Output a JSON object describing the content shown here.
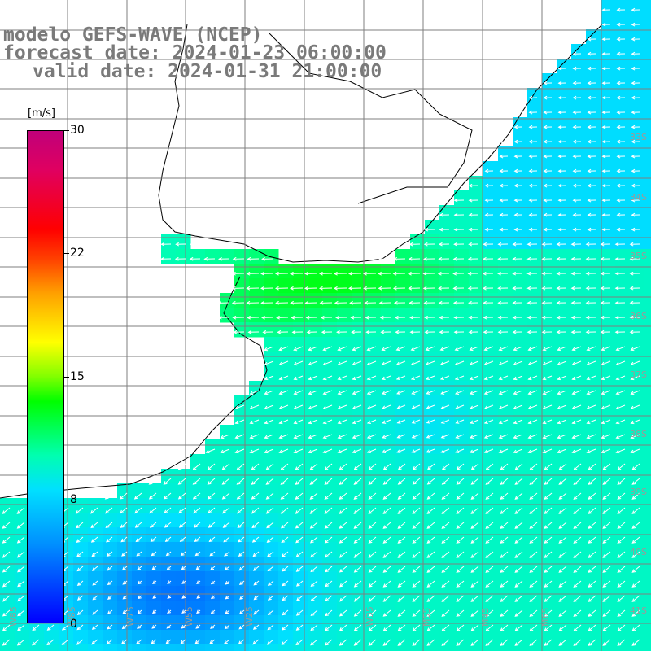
{
  "title": {
    "line1": "modelo GEFS-WAVE (NCEP)",
    "line2": "forecast date: 2024-01-23 06:00:00",
    "line3": "valid date: 2024-01-31 21:00:00"
  },
  "colorbar": {
    "unit": "[m/s]",
    "ticks": [
      "30",
      "22",
      "15",
      "8",
      "0"
    ],
    "tick_values": [
      30,
      22,
      15,
      8,
      0
    ],
    "min": 0,
    "max": 30,
    "stops": [
      {
        "v": 0,
        "color": "#0000ff"
      },
      {
        "v": 5,
        "color": "#0090ff"
      },
      {
        "v": 8,
        "color": "#00e0ff"
      },
      {
        "v": 10,
        "color": "#00ffb0"
      },
      {
        "v": 13.5,
        "color": "#00ff00"
      },
      {
        "v": 15,
        "color": "#80ff00"
      },
      {
        "v": 17,
        "color": "#ffff00"
      },
      {
        "v": 20,
        "color": "#ffa000"
      },
      {
        "v": 22,
        "color": "#ff4000"
      },
      {
        "v": 24,
        "color": "#ff0000"
      },
      {
        "v": 30,
        "color": "#c0007a"
      }
    ]
  },
  "map": {
    "lat_labels": [
      "33S",
      "34S",
      "35S",
      "36S",
      "37S",
      "38S",
      "39S",
      "40S",
      "41S"
    ],
    "lon_labels": [
      "W85",
      "W85",
      "W75",
      "W55",
      "W25",
      "W35",
      "M55",
      "M45",
      "M65"
    ],
    "land_color": "#ffffff",
    "grid_color": "#7f7f7f",
    "coast_color": "#000000",
    "arrow_color": "#ffffff",
    "wind_direction": "from east / north-east toward south-west"
  }
}
